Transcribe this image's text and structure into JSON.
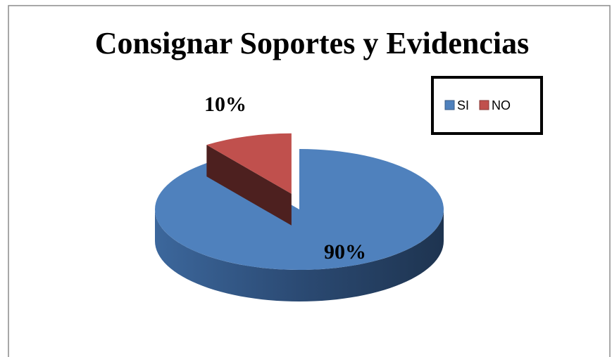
{
  "chart_data": {
    "type": "pie",
    "title": "Consignar Soportes y Evidencias",
    "categories": [
      "SI",
      "NO"
    ],
    "values": [
      90,
      10
    ],
    "value_labels": [
      "90%",
      "10%"
    ],
    "colors": [
      "#4f81bd",
      "#c0504d"
    ],
    "legend": "top-right"
  }
}
